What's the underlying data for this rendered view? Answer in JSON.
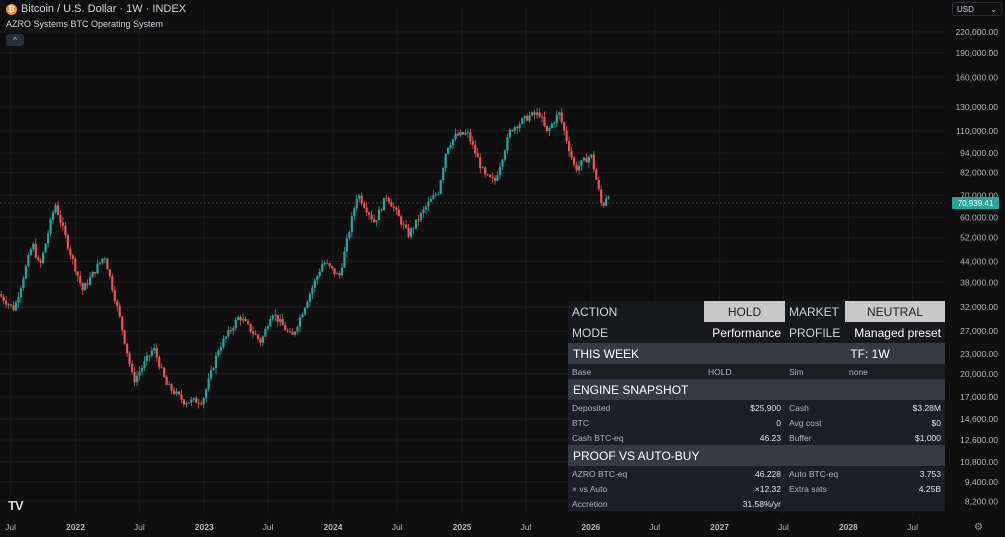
{
  "header": {
    "symbol_icon": "bitcoin-icon",
    "title": "Bitcoin / U.S. Dollar · 1W · INDEX",
    "subtitle": "AZRO Systems BTC Operating System",
    "collapse_glyph": "^"
  },
  "currency": {
    "label": "USD",
    "icon": "chevron-down-icon"
  },
  "logo_text": "TV",
  "chart_data": {
    "type": "candlestick",
    "scale": "log",
    "ylim": [
      7500,
      260000
    ],
    "xlim": [
      "2021-06-01",
      "2028-10-01"
    ],
    "y_ticks": [
      8200,
      9400,
      10800,
      12600,
      14600,
      17000,
      20000,
      23000,
      27000,
      32000,
      38000,
      44000,
      52000,
      60000,
      70000,
      82000,
      94000,
      110000,
      130000,
      160000,
      190000,
      220000
    ],
    "y_tick_labels": [
      "8,200.00",
      "9,400.00",
      "10,800.00",
      "12,600.00",
      "14,600.00",
      "17,000.00",
      "20,000.00",
      "23,000.00",
      "27,000.00",
      "32,000.00",
      "38,000.00",
      "44,000.00",
      "52,000.00",
      "60,000.00",
      "70,000.00",
      "82,000.00",
      "94,000.00",
      "110,000.00",
      "130,000.00",
      "160,000.00",
      "190,000.00",
      "220,000.00"
    ],
    "x_ticks": [
      {
        "date": "2021-07-01",
        "label": "Jul",
        "bold": false
      },
      {
        "date": "2022-01-01",
        "label": "2022",
        "bold": true
      },
      {
        "date": "2022-07-01",
        "label": "Jul",
        "bold": false
      },
      {
        "date": "2023-01-01",
        "label": "2023",
        "bold": true
      },
      {
        "date": "2023-07-01",
        "label": "Jul",
        "bold": false
      },
      {
        "date": "2024-01-01",
        "label": "2024",
        "bold": true
      },
      {
        "date": "2024-07-01",
        "label": "Jul",
        "bold": false
      },
      {
        "date": "2025-01-01",
        "label": "2025",
        "bold": true
      },
      {
        "date": "2025-07-01",
        "label": "Jul",
        "bold": false
      },
      {
        "date": "2026-01-01",
        "label": "2026",
        "bold": true
      },
      {
        "date": "2026-07-01",
        "label": "Jul",
        "bold": false
      },
      {
        "date": "2027-01-01",
        "label": "2027",
        "bold": true
      },
      {
        "date": "2027-07-01",
        "label": "Jul",
        "bold": false
      },
      {
        "date": "2028-01-01",
        "label": "2028",
        "bold": true
      },
      {
        "date": "2028-07-01",
        "label": "Jul",
        "bold": false
      }
    ],
    "last_price": 70939.41,
    "last_price_label": "70,939.41",
    "up_color": "#26a69a",
    "down_color": "#ef5350",
    "path": [
      [
        "2021-06-01",
        35000
      ],
      [
        "2021-07-15",
        31500
      ],
      [
        "2021-09-05",
        50000
      ],
      [
        "2021-09-25",
        42000
      ],
      [
        "2021-11-08",
        66000
      ],
      [
        "2021-12-20",
        47000
      ],
      [
        "2022-01-25",
        36000
      ],
      [
        "2022-03-28",
        46000
      ],
      [
        "2022-05-12",
        29000
      ],
      [
        "2022-06-18",
        19000
      ],
      [
        "2022-08-14",
        24000
      ],
      [
        "2022-09-20",
        18500
      ],
      [
        "2022-11-08",
        16500
      ],
      [
        "2022-12-31",
        16600
      ],
      [
        "2023-02-15",
        24000
      ],
      [
        "2023-04-14",
        30000
      ],
      [
        "2023-06-15",
        25000
      ],
      [
        "2023-07-15",
        31000
      ],
      [
        "2023-09-10",
        25800
      ],
      [
        "2023-10-25",
        34000
      ],
      [
        "2023-12-08",
        44000
      ],
      [
        "2024-01-22",
        39500
      ],
      [
        "2024-03-14",
        71000
      ],
      [
        "2024-05-01",
        58000
      ],
      [
        "2024-06-05",
        70000
      ],
      [
        "2024-08-05",
        53000
      ],
      [
        "2024-09-28",
        65500
      ],
      [
        "2024-10-29",
        72000
      ],
      [
        "2024-11-22",
        98000
      ],
      [
        "2024-12-17",
        106000
      ],
      [
        "2025-01-20",
        108000
      ],
      [
        "2025-03-10",
        80000
      ],
      [
        "2025-04-07",
        77000
      ],
      [
        "2025-05-22",
        111000
      ],
      [
        "2025-07-14",
        122000
      ],
      [
        "2025-08-13",
        124000
      ],
      [
        "2025-09-01",
        108000
      ],
      [
        "2025-10-06",
        125000
      ],
      [
        "2025-11-21",
        84000
      ],
      [
        "2026-01-05",
        93000
      ],
      [
        "2026-02-06",
        64000
      ],
      [
        "2026-02-20",
        70939
      ]
    ]
  },
  "panel": {
    "row1": {
      "label1": "ACTION",
      "value1": "HOLD",
      "label2": "MARKET",
      "value2": "NEUTRAL"
    },
    "row2": {
      "label1": "MODE",
      "value1": "Performance",
      "label2": "PROFILE",
      "value2": "Managed preset"
    },
    "this_week": {
      "title": "THIS WEEK",
      "tf": "TF: 1W"
    },
    "base_row": {
      "label1": "Base",
      "value1": "HOLD.",
      "label2": "Sim",
      "value2": "none"
    },
    "engine": {
      "title": "ENGINE SNAPSHOT",
      "rows": [
        {
          "l1": "Deposited",
          "v1": "$25,900",
          "l2": "Cash",
          "v2": "$3.28M"
        },
        {
          "l1": "BTC",
          "v1": "0",
          "l2": "Avg cost",
          "v2": "$0"
        },
        {
          "l1": "Cash BTC-eq",
          "v1": "46.23",
          "l2": "Buffer",
          "v2": "$1,000"
        }
      ]
    },
    "proof": {
      "title": "PROOF VS AUTO-BUY",
      "rows": [
        {
          "l1": "AZRO BTC-eq",
          "v1": "46.228",
          "l2": "Auto BTC-eq",
          "v2": "3.753"
        },
        {
          "l1": "× vs Auto",
          "v1": "×12.32",
          "l2": "Extra sats",
          "v2": "4.25B"
        },
        {
          "l1": "Accretion",
          "v1": "31.58%/yr",
          "l2": "",
          "v2": ""
        }
      ]
    }
  }
}
